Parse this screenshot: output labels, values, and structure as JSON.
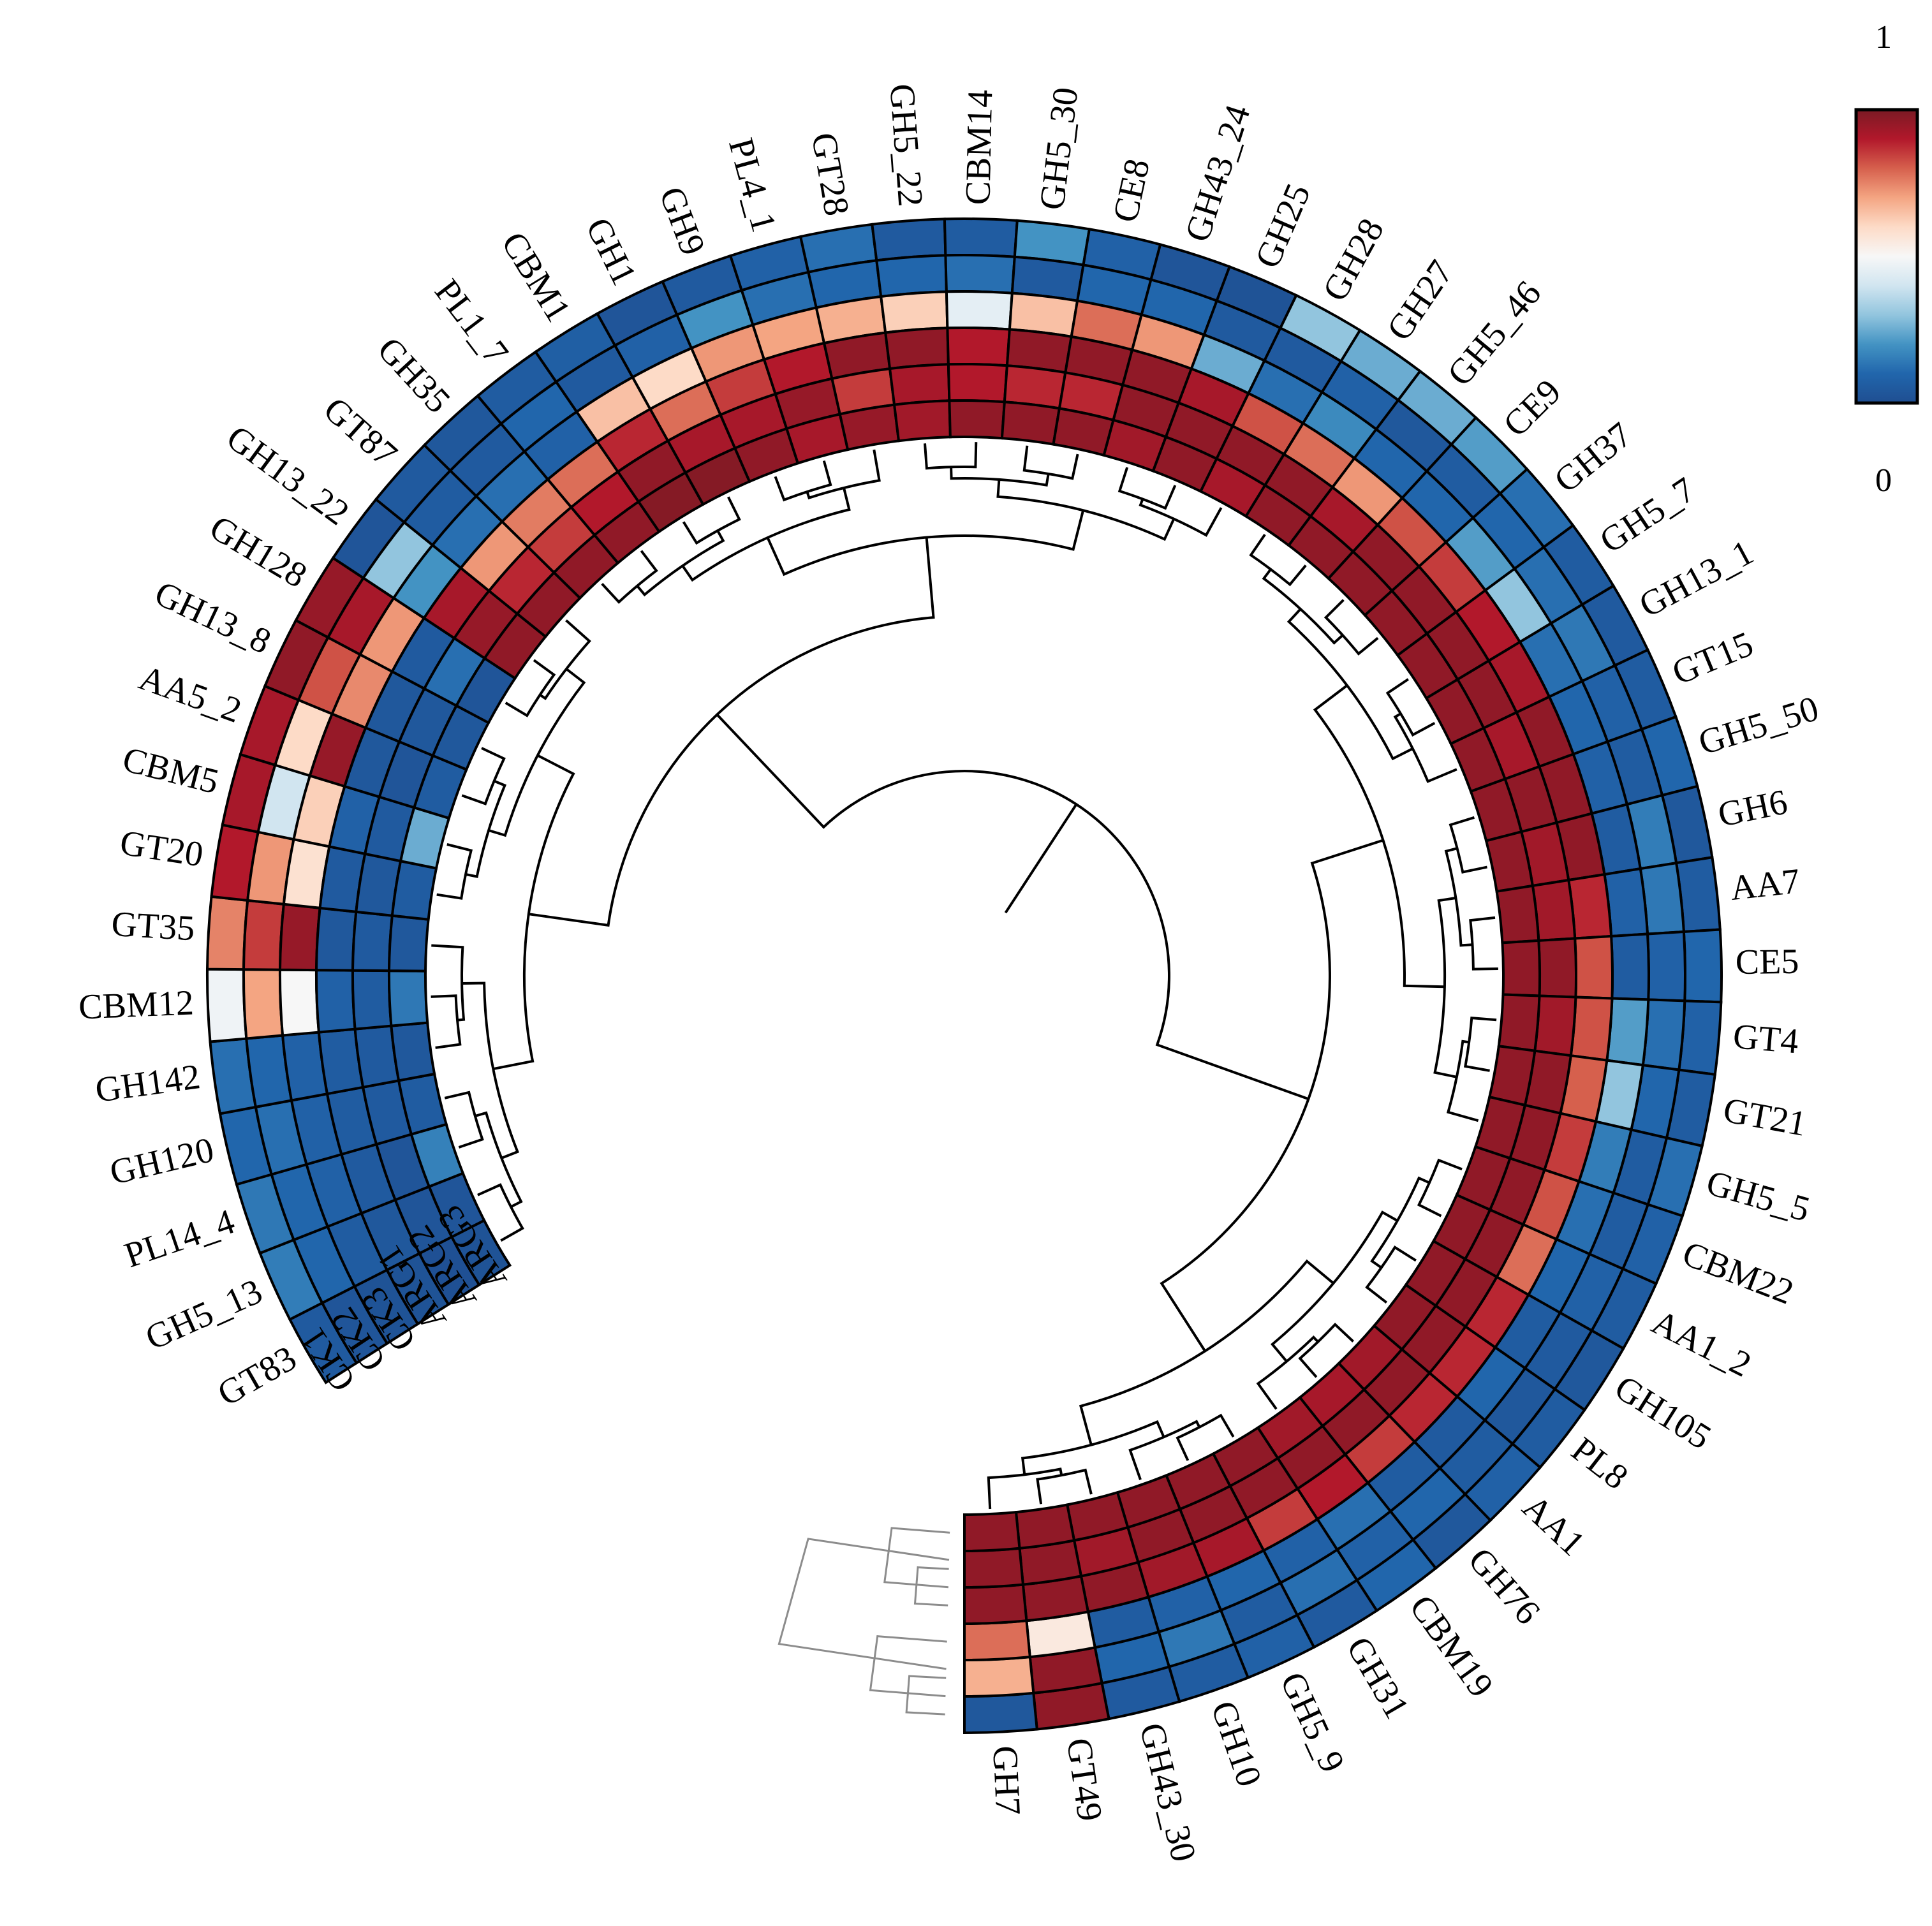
{
  "chart_data": {
    "type": "heatmap",
    "layout": "circular",
    "samples": [
      "CK1",
      "CK2",
      "CK3",
      "ARG1",
      "ARG2",
      "ARG3"
    ],
    "legend": {
      "max_label": "1",
      "min_label": "0",
      "colors": [
        "#1f4e91",
        "#2166ac",
        "#4393c3",
        "#92c5de",
        "#d1e5f0",
        "#f7f7f7",
        "#fddbc7",
        "#f4a582",
        "#d6604d",
        "#b2182b",
        "#7a1a24"
      ]
    },
    "families": [
      {
        "name": "GT83",
        "values": [
          0.05,
          0.03,
          0.02,
          0.02,
          0.01,
          0.02
        ]
      },
      {
        "name": "GH5_13",
        "values": [
          0.15,
          0.1,
          0.06,
          0.04,
          0.03,
          0.03
        ]
      },
      {
        "name": "PL14_4",
        "values": [
          0.14,
          0.1,
          0.08,
          0.05,
          0.03,
          0.16
        ]
      },
      {
        "name": "GH120",
        "values": [
          0.1,
          0.12,
          0.08,
          0.06,
          0.05,
          0.06
        ]
      },
      {
        "name": "GH142",
        "values": [
          0.12,
          0.1,
          0.08,
          0.06,
          0.05,
          0.04
        ]
      },
      {
        "name": "CBM12",
        "values": [
          0.48,
          0.7,
          0.5,
          0.08,
          0.06,
          0.14
        ]
      },
      {
        "name": "GT35",
        "values": [
          0.75,
          0.85,
          0.95,
          0.04,
          0.05,
          0.04
        ]
      },
      {
        "name": "GT20",
        "values": [
          0.9,
          0.72,
          0.58,
          0.05,
          0.04,
          0.06
        ]
      },
      {
        "name": "CBM5",
        "values": [
          0.92,
          0.4,
          0.62,
          0.08,
          0.05,
          0.25
        ]
      },
      {
        "name": "AA5_2",
        "values": [
          0.92,
          0.6,
          0.95,
          0.04,
          0.03,
          0.06
        ]
      },
      {
        "name": "GH13_8",
        "values": [
          0.96,
          0.82,
          0.74,
          0.04,
          0.04,
          0.04
        ]
      },
      {
        "name": "GH128",
        "values": [
          0.95,
          0.92,
          0.72,
          0.05,
          0.12,
          0.03
        ]
      },
      {
        "name": "GH13_22",
        "values": [
          0.03,
          0.3,
          0.2,
          0.92,
          0.95,
          0.96
        ]
      },
      {
        "name": "GT87",
        "values": [
          0.05,
          0.06,
          0.12,
          0.72,
          0.88,
          0.96
        ]
      },
      {
        "name": "GH35",
        "values": [
          0.04,
          0.05,
          0.12,
          0.76,
          0.85,
          0.96
        ]
      },
      {
        "name": "PL1_7",
        "values": [
          0.06,
          0.1,
          0.08,
          0.78,
          0.9,
          0.96
        ]
      },
      {
        "name": "CBM1",
        "values": [
          0.07,
          0.05,
          0.65,
          0.88,
          0.96,
          0.98
        ]
      },
      {
        "name": "GH1",
        "values": [
          0.03,
          0.08,
          0.6,
          0.78,
          0.92,
          0.98
        ]
      },
      {
        "name": "GH9",
        "values": [
          0.05,
          0.2,
          0.72,
          0.85,
          0.92,
          0.96
        ]
      },
      {
        "name": "PL4_1",
        "values": [
          0.08,
          0.12,
          0.7,
          0.9,
          0.95,
          0.92
        ]
      },
      {
        "name": "GT28",
        "values": [
          0.12,
          0.1,
          0.68,
          0.96,
          0.85,
          0.95
        ]
      },
      {
        "name": "GH5_22",
        "values": [
          0.05,
          0.1,
          0.62,
          0.96,
          0.92,
          0.93
        ]
      },
      {
        "name": "CBM14",
        "values": [
          0.06,
          0.12,
          0.45,
          0.9,
          0.9,
          0.96
        ]
      },
      {
        "name": "GH5_30",
        "values": [
          0.2,
          0.05,
          0.65,
          0.96,
          0.88,
          0.96
        ]
      },
      {
        "name": "CE8",
        "values": [
          0.08,
          0.1,
          0.78,
          0.96,
          0.88,
          0.96
        ]
      },
      {
        "name": "GH43_24",
        "values": [
          0.03,
          0.1,
          0.72,
          0.96,
          0.96,
          0.93
        ]
      },
      {
        "name": "GH25",
        "values": [
          0.02,
          0.05,
          0.25,
          0.92,
          0.96,
          0.96
        ]
      },
      {
        "name": "GH28",
        "values": [
          0.3,
          0.05,
          0.12,
          0.82,
          0.96,
          0.92
        ]
      },
      {
        "name": "GH27",
        "values": [
          0.25,
          0.08,
          0.18,
          0.78,
          0.96,
          0.96
        ]
      },
      {
        "name": "GH5_46",
        "values": [
          0.25,
          0.04,
          0.1,
          0.72,
          0.92,
          0.96
        ]
      },
      {
        "name": "CE9",
        "values": [
          0.22,
          0.06,
          0.1,
          0.82,
          0.96,
          0.96
        ]
      },
      {
        "name": "GH37",
        "values": [
          0.12,
          0.1,
          0.22,
          0.85,
          0.96,
          0.96
        ]
      },
      {
        "name": "GH5_7",
        "values": [
          0.06,
          0.12,
          0.3,
          0.9,
          0.96,
          0.96
        ]
      },
      {
        "name": "GH13_1",
        "values": [
          0.05,
          0.14,
          0.12,
          0.92,
          0.96,
          0.96
        ]
      },
      {
        "name": "GT15",
        "values": [
          0.06,
          0.08,
          0.1,
          0.96,
          0.92,
          0.96
        ]
      },
      {
        "name": "GH5_50",
        "values": [
          0.1,
          0.06,
          0.08,
          0.96,
          0.96,
          0.96
        ]
      },
      {
        "name": "GH6",
        "values": [
          0.04,
          0.15,
          0.06,
          0.96,
          0.93,
          0.96
        ]
      },
      {
        "name": "AA7",
        "values": [
          0.06,
          0.14,
          0.08,
          0.88,
          0.93,
          0.96
        ]
      },
      {
        "name": "CE5",
        "values": [
          0.1,
          0.08,
          0.06,
          0.82,
          0.96,
          0.96
        ]
      },
      {
        "name": "GT4",
        "values": [
          0.08,
          0.12,
          0.22,
          0.82,
          0.93,
          0.96
        ]
      },
      {
        "name": "GT21",
        "values": [
          0.06,
          0.1,
          0.3,
          0.8,
          0.96,
          0.96
        ]
      },
      {
        "name": "GH5_5",
        "values": [
          0.12,
          0.06,
          0.15,
          0.85,
          0.96,
          0.96
        ]
      },
      {
        "name": "CBM22",
        "values": [
          0.08,
          0.06,
          0.12,
          0.82,
          0.96,
          0.96
        ]
      },
      {
        "name": "AA1_2",
        "values": [
          0.06,
          0.08,
          0.1,
          0.78,
          0.96,
          0.96
        ]
      },
      {
        "name": "GH105",
        "values": [
          0.04,
          0.05,
          0.06,
          0.88,
          0.96,
          0.96
        ]
      },
      {
        "name": "PL8",
        "values": [
          0.06,
          0.04,
          0.1,
          0.88,
          0.96,
          0.96
        ]
      },
      {
        "name": "AA1",
        "values": [
          0.08,
          0.06,
          0.05,
          0.88,
          0.96,
          0.93
        ]
      },
      {
        "name": "GH76",
        "values": [
          0.04,
          0.1,
          0.06,
          0.85,
          0.96,
          0.92
        ]
      },
      {
        "name": "CBM19",
        "values": [
          0.1,
          0.08,
          0.12,
          0.9,
          0.96,
          0.93
        ]
      },
      {
        "name": "GH31",
        "values": [
          0.05,
          0.12,
          0.08,
          0.85,
          0.96,
          0.96
        ]
      },
      {
        "name": "GH5_9",
        "values": [
          0.08,
          0.06,
          0.1,
          0.92,
          0.96,
          0.96
        ]
      },
      {
        "name": "GH10",
        "values": [
          0.06,
          0.14,
          0.08,
          0.93,
          0.96,
          0.96
        ]
      },
      {
        "name": "GH43_30",
        "values": [
          0.05,
          0.1,
          0.06,
          0.96,
          0.93,
          0.96
        ]
      },
      {
        "name": "GT49",
        "values": [
          0.96,
          0.96,
          0.55,
          0.96,
          0.96,
          0.96
        ]
      },
      {
        "name": "GH7",
        "values": [
          0.04,
          0.68,
          0.78,
          0.96,
          0.96,
          0.96
        ]
      }
    ]
  }
}
